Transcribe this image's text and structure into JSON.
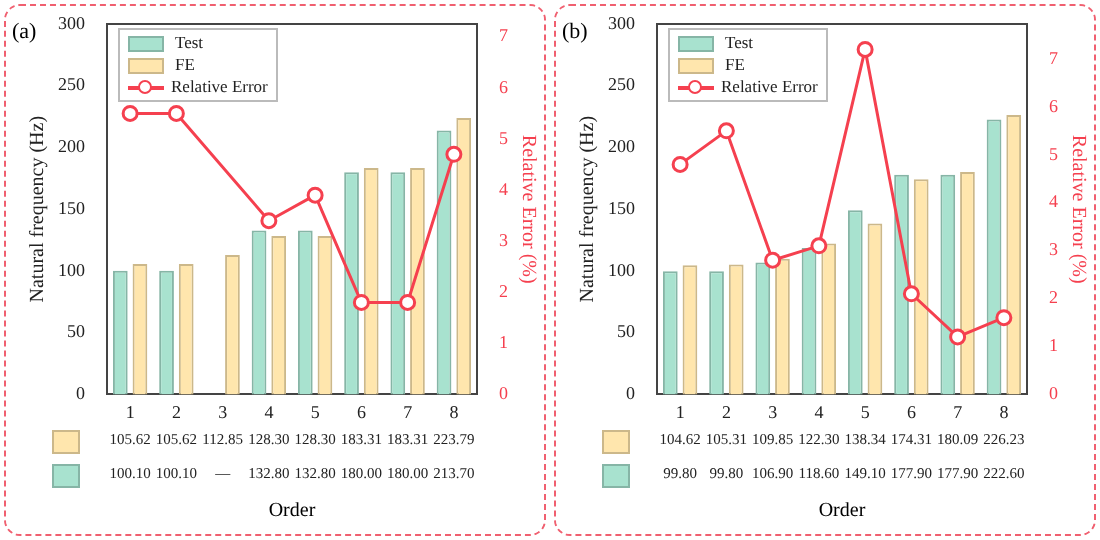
{
  "chart_data": [
    {
      "type": "bar",
      "title": "(a)",
      "categories": [
        "1",
        "2",
        "3",
        "4",
        "5",
        "6",
        "7",
        "8"
      ],
      "xlabel": "Order",
      "ylabel": "Natural frequency (Hz)",
      "y2label": "Relative Error (%)",
      "ylim": [
        0,
        300
      ],
      "yticks": [
        0,
        50,
        100,
        150,
        200,
        250,
        300
      ],
      "y2lim": [
        0,
        7.25
      ],
      "y2ticks": [
        0,
        1,
        2,
        3,
        4,
        5,
        6,
        7
      ],
      "legend": "top left",
      "series": [
        {
          "name": "Test",
          "color": "#a8e2cf",
          "values": [
            100.1,
            100.1,
            null,
            132.8,
            132.8,
            180.0,
            180.0,
            213.7
          ],
          "value_labels": [
            "100.10",
            "100.10",
            "—",
            "132.80",
            "132.80",
            "180.00",
            "180.00",
            "213.70"
          ]
        },
        {
          "name": "FE",
          "color": "#ffe6ad",
          "values": [
            105.62,
            105.62,
            112.85,
            128.3,
            128.3,
            183.31,
            183.31,
            223.79
          ],
          "value_labels": [
            "105.62",
            "105.62",
            "112.85",
            "128.30",
            "128.30",
            "183.31",
            "183.31",
            "223.79"
          ]
        },
        {
          "name": "Relative Error",
          "type": "line",
          "axis": "y2",
          "color": "#f5404f",
          "marker": "circle",
          "values": [
            5.5,
            5.5,
            null,
            3.4,
            3.9,
            1.8,
            1.8,
            4.7
          ]
        }
      ]
    },
    {
      "type": "bar",
      "title": "(b)",
      "categories": [
        "1",
        "2",
        "3",
        "4",
        "5",
        "6",
        "7",
        "8"
      ],
      "xlabel": "Order",
      "ylabel": "Natural frequency (Hz)",
      "y2label": "Relative Error (%)",
      "ylim": [
        0,
        300
      ],
      "yticks": [
        0,
        50,
        100,
        150,
        200,
        250,
        300
      ],
      "y2lim": [
        0,
        7.73
      ],
      "y2ticks": [
        0,
        1,
        2,
        3,
        4,
        5,
        6,
        7
      ],
      "legend": "top left",
      "series": [
        {
          "name": "Test",
          "color": "#a8e2cf",
          "values": [
            99.8,
            99.8,
            106.9,
            118.6,
            149.1,
            177.9,
            177.9,
            222.6
          ],
          "value_labels": [
            "99.80",
            "99.80",
            "106.90",
            "118.60",
            "149.10",
            "177.90",
            "177.90",
            "222.60"
          ]
        },
        {
          "name": "FE",
          "color": "#ffe6ad",
          "values": [
            104.62,
            105.31,
            109.85,
            122.3,
            138.34,
            174.31,
            180.09,
            226.23
          ],
          "value_labels": [
            "104.62",
            "105.31",
            "109.85",
            "122.30",
            "138.34",
            "174.31",
            "180.09",
            "226.23"
          ]
        },
        {
          "name": "Relative Error",
          "type": "line",
          "axis": "y2",
          "color": "#f5404f",
          "marker": "circle",
          "values": [
            4.8,
            5.5,
            2.8,
            3.1,
            7.2,
            2.1,
            1.2,
            1.6
          ]
        }
      ]
    }
  ]
}
